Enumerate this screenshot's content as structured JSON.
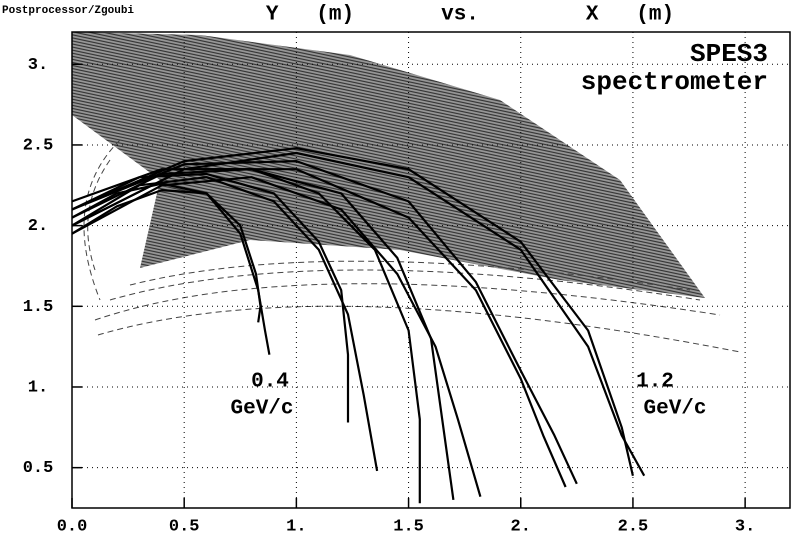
{
  "chart_data": {
    "type": "line",
    "corner_label": "Postprocessor/Zgoubi",
    "ylabel": "Y   (m)",
    "vs_label": "vs.",
    "xlabel": "X   (m)",
    "annotations": [
      "SPES3",
      "spectrometer",
      "0.4",
      "GeV/c",
      "1.2",
      "GeV/c"
    ],
    "color": "#000000",
    "grid": true,
    "xlim": [
      0,
      3.2
    ],
    "ylim": [
      0.25,
      3.2
    ],
    "xticks": [
      {
        "value": 0,
        "label": "0.0"
      },
      0.5,
      {
        "value": 1,
        "label": "1."
      },
      1.5,
      {
        "value": 2,
        "label": "2."
      },
      2.5,
      {
        "value": 3,
        "label": "3."
      }
    ],
    "yticks": [
      0.5,
      {
        "value": 1,
        "label": "1."
      },
      1.5,
      {
        "value": 2,
        "label": "2."
      },
      2.5,
      {
        "value": 3,
        "label": "3."
      }
    ],
    "series": [
      {
        "x": [
          0,
          0.2,
          0.4,
          0.6,
          0.75,
          0.83,
          0.86,
          0.88
        ],
        "values": [
          2.05,
          2.2,
          2.26,
          2.2,
          1.95,
          1.6,
          1.35,
          1.2
        ]
      },
      {
        "x": [
          0,
          0.2,
          0.4,
          0.6,
          0.75,
          0.82,
          0.84,
          0.83
        ],
        "values": [
          1.95,
          2.12,
          2.22,
          2.2,
          2.0,
          1.7,
          1.5,
          1.4
        ]
      },
      {
        "x": [
          0,
          0.3,
          0.6,
          0.9,
          1.1,
          1.23,
          1.3,
          1.36
        ],
        "values": [
          2.0,
          2.25,
          2.3,
          2.15,
          1.85,
          1.45,
          0.95,
          0.48
        ]
      },
      {
        "x": [
          0,
          0.3,
          0.6,
          0.9,
          1.1,
          1.2,
          1.23,
          1.23
        ],
        "values": [
          2.1,
          2.3,
          2.32,
          2.2,
          1.9,
          1.6,
          1.2,
          0.78
        ]
      },
      {
        "x": [
          0,
          0.4,
          0.8,
          1.2,
          1.45,
          1.62,
          1.72,
          1.82
        ],
        "values": [
          1.95,
          2.25,
          2.3,
          2.1,
          1.7,
          1.25,
          0.8,
          0.32
        ]
      },
      {
        "x": [
          0,
          0.4,
          0.8,
          1.2,
          1.45,
          1.6,
          1.65,
          1.7
        ],
        "values": [
          2.05,
          2.32,
          2.35,
          2.2,
          1.8,
          1.3,
          0.8,
          0.3
        ]
      },
      {
        "x": [
          0,
          0.4,
          0.8,
          1.1,
          1.35,
          1.5,
          1.55,
          1.55
        ],
        "values": [
          2.15,
          2.35,
          2.35,
          2.2,
          1.85,
          1.35,
          0.8,
          0.28
        ]
      },
      {
        "x": [
          0,
          0.5,
          1.0,
          1.5,
          1.8,
          2.0,
          2.1,
          2.2
        ],
        "values": [
          2.0,
          2.35,
          2.35,
          2.05,
          1.6,
          1.05,
          0.7,
          0.38
        ]
      },
      {
        "x": [
          0,
          0.5,
          1.0,
          1.5,
          1.8,
          2.0,
          2.15,
          2.25
        ],
        "values": [
          2.1,
          2.38,
          2.4,
          2.15,
          1.65,
          1.1,
          0.7,
          0.4
        ]
      },
      {
        "x": [
          0,
          0.5,
          1.0,
          1.5,
          2.0,
          2.3,
          2.45,
          2.55
        ],
        "values": [
          2.0,
          2.35,
          2.45,
          2.3,
          1.85,
          1.25,
          0.7,
          0.45
        ]
      },
      {
        "x": [
          0,
          0.5,
          1.0,
          1.5,
          2.0,
          2.3,
          2.45,
          2.5
        ],
        "values": [
          2.1,
          2.4,
          2.48,
          2.35,
          1.9,
          1.35,
          0.75,
          0.45
        ]
      }
    ]
  }
}
